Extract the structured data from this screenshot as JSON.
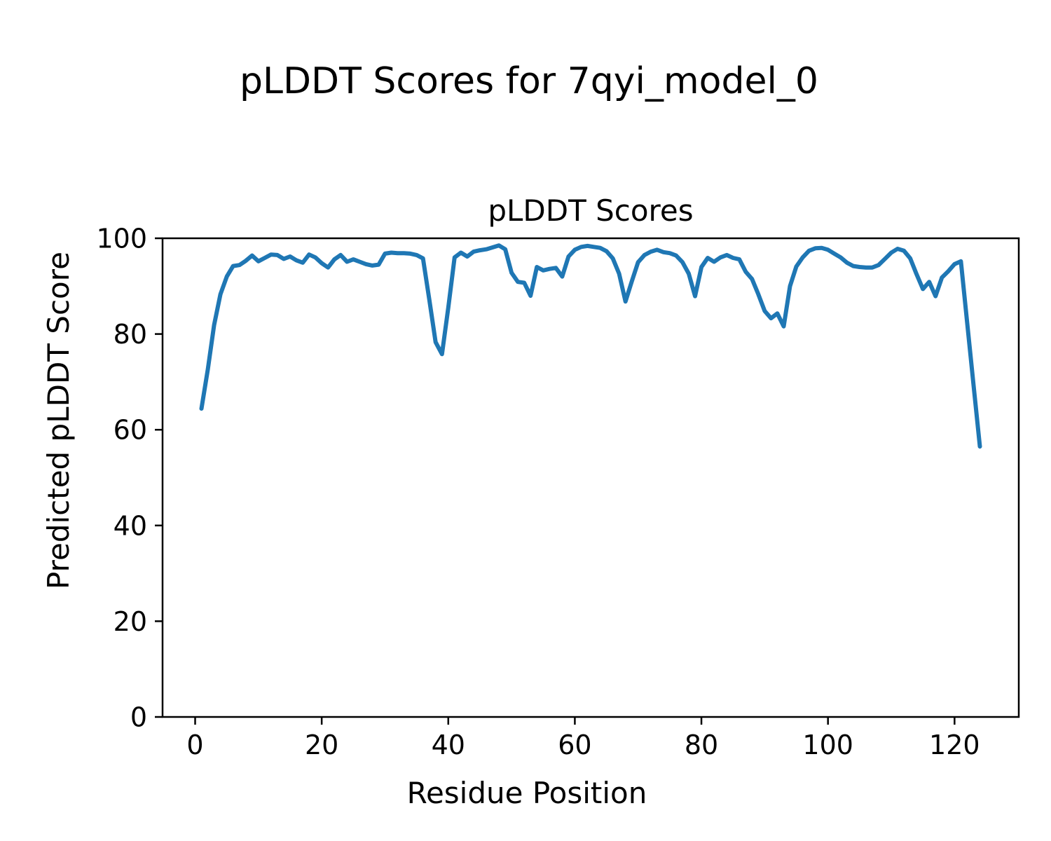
{
  "figure": {
    "suptitle": "pLDDT Scores for 7qyi_model_0"
  },
  "chart_data": {
    "type": "line",
    "title": "pLDDT Scores",
    "xlabel": "Residue Position",
    "ylabel": "Predicted pLDDT Score",
    "series_name": "pLDDT per residue",
    "line_color": "#1f77b4",
    "line_width": 6,
    "grid": false,
    "legend": "none",
    "xlim": [
      -5.15,
      130.15
    ],
    "ylim": [
      0,
      100
    ],
    "xticks": [
      0,
      20,
      40,
      60,
      80,
      100,
      120
    ],
    "yticks": [
      0,
      20,
      40,
      60,
      80,
      100
    ],
    "x": [
      1,
      2,
      3,
      4,
      5,
      6,
      7,
      8,
      9,
      10,
      11,
      12,
      13,
      14,
      15,
      16,
      17,
      18,
      19,
      20,
      21,
      22,
      23,
      24,
      25,
      26,
      27,
      28,
      29,
      30,
      31,
      32,
      33,
      34,
      35,
      36,
      37,
      38,
      39,
      40,
      41,
      42,
      43,
      44,
      45,
      46,
      47,
      48,
      49,
      50,
      51,
      52,
      53,
      54,
      55,
      56,
      57,
      58,
      59,
      60,
      61,
      62,
      63,
      64,
      65,
      66,
      67,
      68,
      69,
      70,
      71,
      72,
      73,
      74,
      75,
      76,
      77,
      78,
      79,
      80,
      81,
      82,
      83,
      84,
      85,
      86,
      87,
      88,
      89,
      90,
      91,
      92,
      93,
      94,
      95,
      96,
      97,
      98,
      99,
      100,
      101,
      102,
      103,
      104,
      105,
      106,
      107,
      108,
      109,
      110,
      111,
      112,
      113,
      114,
      115,
      116,
      117,
      118,
      119,
      120,
      121,
      122,
      123,
      124
    ],
    "y": [
      64.4,
      72.6,
      81.9,
      88.3,
      92.0,
      94.2,
      94.4,
      95.3,
      96.4,
      95.2,
      95.9,
      96.6,
      96.5,
      95.7,
      96.2,
      95.4,
      94.9,
      96.6,
      96.0,
      94.8,
      93.9,
      95.6,
      96.5,
      95.1,
      95.6,
      95.1,
      94.6,
      94.3,
      94.5,
      96.8,
      97.0,
      96.9,
      96.9,
      96.8,
      96.5,
      95.8,
      87.2,
      78.3,
      75.8,
      85.5,
      96.0,
      97.0,
      96.2,
      97.2,
      97.5,
      97.7,
      98.1,
      98.5,
      97.7,
      92.8,
      90.9,
      90.7,
      88.0,
      94.0,
      93.3,
      93.6,
      93.8,
      92.0,
      96.2,
      97.6,
      98.2,
      98.4,
      98.2,
      98.0,
      97.3,
      95.8,
      92.6,
      86.8,
      91.0,
      95.0,
      96.5,
      97.2,
      97.6,
      97.1,
      96.9,
      96.4,
      95.0,
      92.6,
      87.9,
      94.0,
      95.9,
      95.1,
      96.0,
      96.5,
      95.9,
      95.6,
      93.0,
      91.5,
      88.3,
      84.8,
      83.3,
      84.3,
      81.6,
      90.0,
      94.1,
      96.0,
      97.4,
      97.9,
      98.0,
      97.6,
      96.8,
      96.0,
      94.9,
      94.2,
      94.0,
      93.9,
      93.9,
      94.4,
      95.7,
      97.0,
      97.8,
      97.4,
      95.8,
      92.5,
      89.4,
      90.9,
      87.9,
      91.8,
      93.1,
      94.6,
      95.2,
      82.3,
      69.4,
      56.5
    ]
  }
}
